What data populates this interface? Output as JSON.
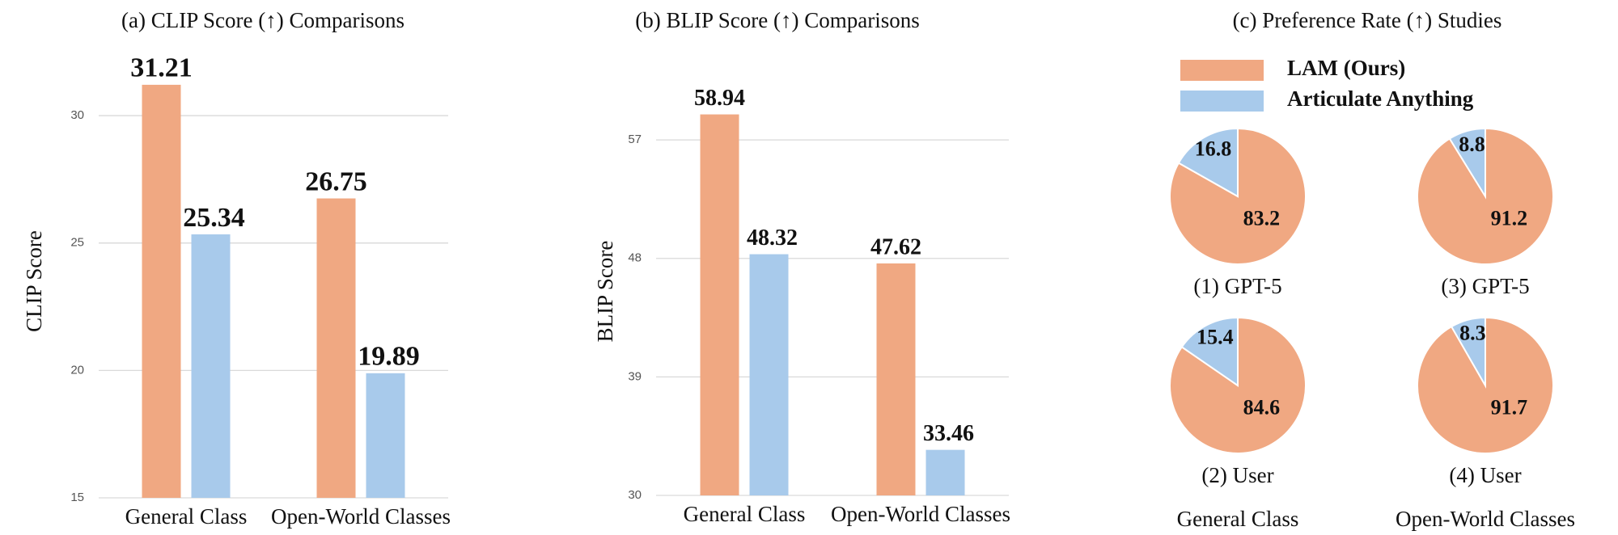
{
  "chart_data": [
    {
      "type": "bar",
      "title": "(a) CLIP Score (↑) Comparisons",
      "y_label": "CLIP Score",
      "categories": [
        "General Class",
        "Open-World Classes"
      ],
      "series": [
        {
          "color": "#f0a882",
          "values": [
            31.21,
            26.75
          ]
        },
        {
          "color": "#a8caeb",
          "values": [
            25.34,
            19.89
          ]
        }
      ],
      "ylim": [
        15,
        32
      ],
      "yticks": [
        15,
        20,
        25,
        30
      ],
      "grid": true
    },
    {
      "type": "bar",
      "title": "(b) BLIP Score (↑) Comparisons",
      "y_label": "BLIP Score",
      "categories": [
        "General Class",
        "Open-World Classes"
      ],
      "series": [
        {
          "color": "#f0a882",
          "values": [
            58.94,
            47.62
          ]
        },
        {
          "color": "#a8caeb",
          "values": [
            48.32,
            33.46
          ]
        }
      ],
      "ylim": [
        30,
        61
      ],
      "yticks": [
        30,
        39,
        48,
        57
      ],
      "grid": true
    },
    {
      "type": "pie-grid",
      "title": "(c) Preference Rate (↑)  Studies",
      "series": [
        {
          "name": "LAM (Ours)",
          "color": "#f0a882"
        },
        {
          "name": "Articulate Anything",
          "color": "#a8caeb"
        }
      ],
      "columns": [
        "General Class",
        "Open-World Classes"
      ],
      "pies": [
        {
          "label": "(1) GPT-5",
          "values": [
            83.2,
            16.8
          ]
        },
        {
          "label": "(2) User",
          "values": [
            84.6,
            15.4
          ]
        },
        {
          "label": "(3) GPT-5",
          "values": [
            91.2,
            8.8
          ]
        },
        {
          "label": "(4) User",
          "values": [
            91.7,
            8.3
          ]
        }
      ]
    }
  ]
}
